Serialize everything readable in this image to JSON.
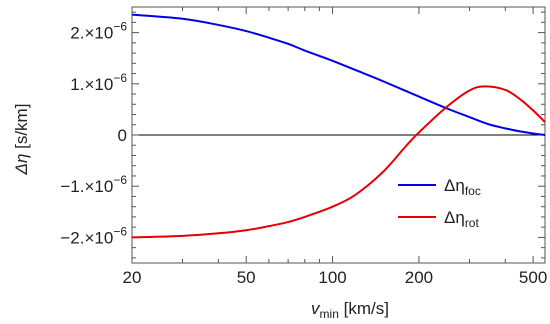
{
  "chart_data": {
    "type": "line",
    "xscale": "log",
    "xlim": [
      20,
      550
    ],
    "ylim": [
      -2.5e-06,
      2.5e-06
    ],
    "xticks": [
      {
        "value": 20,
        "label": "20"
      },
      {
        "value": 50,
        "label": "50"
      },
      {
        "value": 100,
        "label": "100"
      },
      {
        "value": 200,
        "label": "200"
      },
      {
        "value": 500,
        "label": "500"
      }
    ],
    "yticks": [
      {
        "value": -2e-06,
        "mantissa": "−2.",
        "base": "×10",
        "exp": "−6"
      },
      {
        "value": -1e-06,
        "mantissa": "−1.",
        "base": "×10",
        "exp": "−6"
      },
      {
        "value": 0,
        "mantissa": "0",
        "base": "",
        "exp": ""
      },
      {
        "value": 1e-06,
        "mantissa": "1.",
        "base": "×10",
        "exp": "−6"
      },
      {
        "value": 2e-06,
        "mantissa": "2.",
        "base": "×10",
        "exp": "−6"
      }
    ],
    "xlabel": {
      "symbol": "v",
      "sub": "min",
      "unit": " [km/s]"
    },
    "ylabel": {
      "symbol": "Δη",
      "unit": " [s/km]"
    },
    "zero_line": true,
    "legend_position": "lower-right",
    "series": [
      {
        "name": "Δηfoc",
        "legend_main": "Δη",
        "legend_sub": "foc",
        "color": "#0000e6",
        "x": [
          20,
          30,
          40,
          50,
          60,
          70,
          80,
          100,
          120,
          150,
          200,
          250,
          300,
          350,
          400,
          450,
          500,
          550
        ],
        "y": [
          2.35e-06,
          2.27e-06,
          2.15e-06,
          2.03e-06,
          1.9e-06,
          1.78e-06,
          1.65e-06,
          1.45e-06,
          1.27e-06,
          1.05e-06,
          7.5e-07,
          5.2e-07,
          3.5e-07,
          2.1e-07,
          1.3e-07,
          7e-08,
          3e-08,
          0.0
        ]
      },
      {
        "name": "Δηrot",
        "legend_main": "Δη",
        "legend_sub": "rot",
        "color": "#e60000",
        "x": [
          20,
          30,
          40,
          50,
          60,
          70,
          80,
          100,
          120,
          150,
          180,
          200,
          250,
          300,
          340,
          400,
          450,
          500,
          550
        ],
        "y": [
          -2e-06,
          -1.97e-06,
          -1.92e-06,
          -1.86e-06,
          -1.78e-06,
          -1.7e-06,
          -1.6e-06,
          -1.4e-06,
          -1.17e-06,
          -7.2e-07,
          -2.2e-07,
          5e-08,
          5.5e-07,
          8.7e-07,
          9.5e-07,
          8.8e-07,
          7e-07,
          4.8e-07,
          2.5e-07
        ]
      }
    ]
  }
}
